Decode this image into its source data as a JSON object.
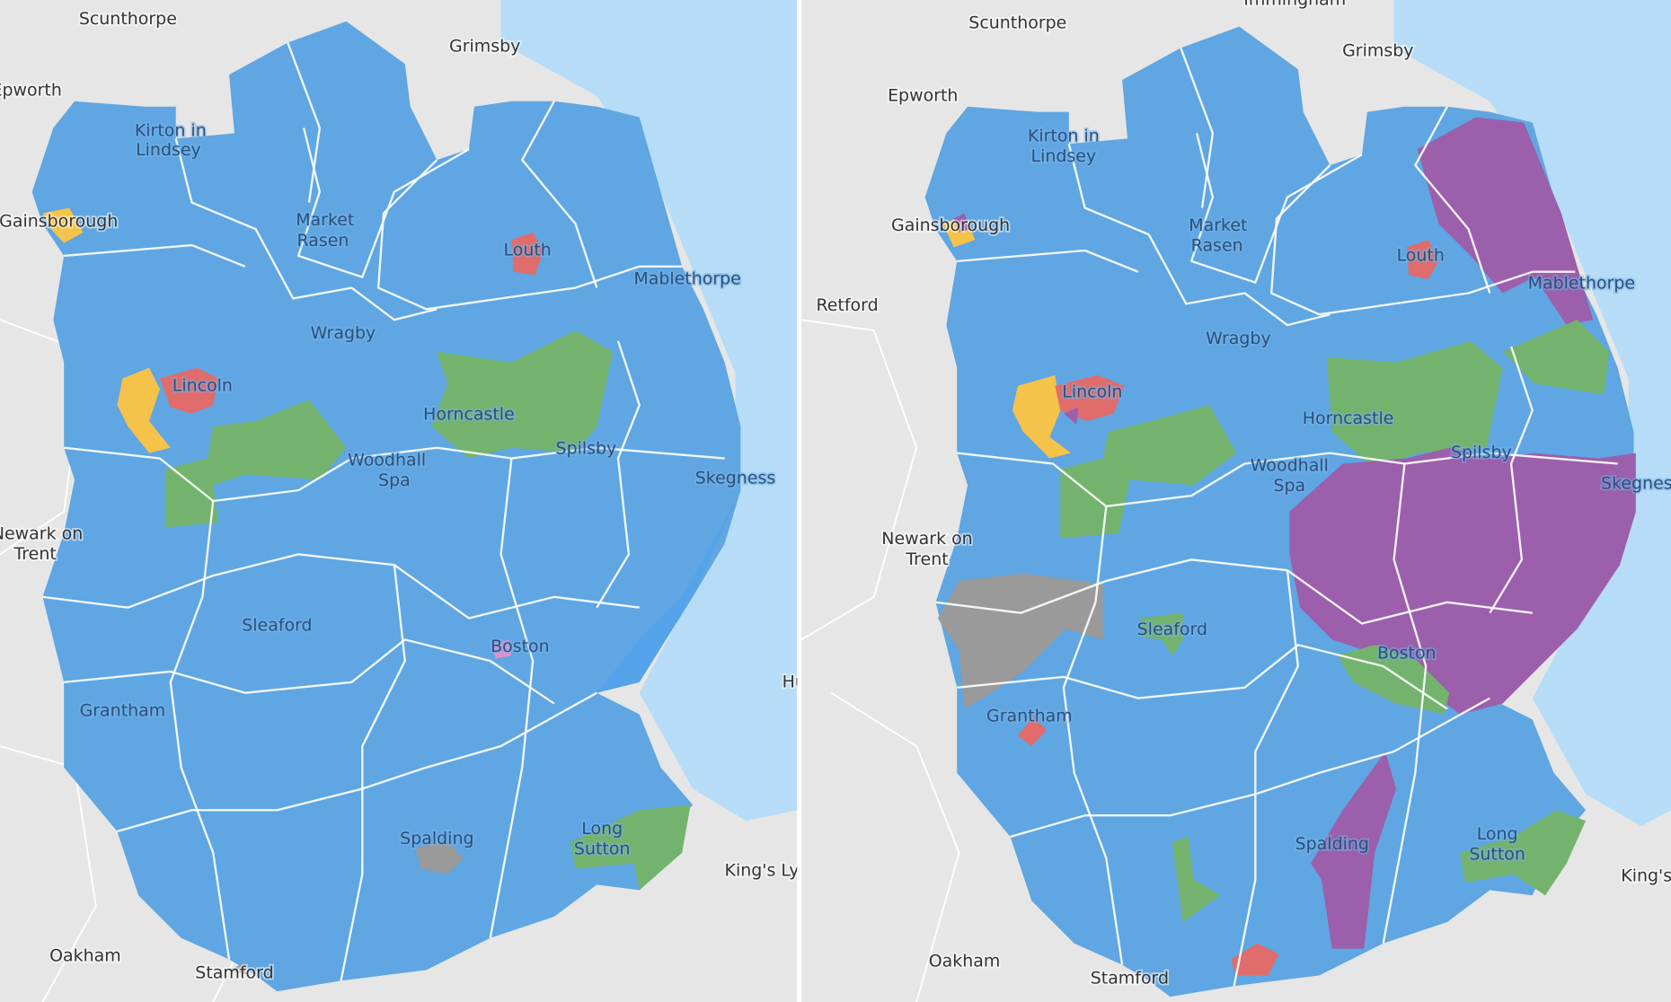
{
  "panels": [
    {
      "labels": [
        "Scunthorpe",
        "Grimsby",
        "Epworth",
        "Kirton in",
        "Lindsey",
        "Gainsborough",
        "Market",
        "Rasen",
        "Louth",
        "Mablethorpe",
        "Wragby",
        "Lincoln",
        "Horncastle",
        "Spilsby",
        "Woodhall",
        "Spa",
        "Skegness",
        "Newark on",
        "Trent",
        "Sleaford",
        "Boston",
        "Grantham",
        "Hu",
        "Spalding",
        "Long",
        "Sutton",
        "King's Lynn",
        "Oakham",
        "Stamford"
      ]
    },
    {
      "labels": [
        "Immingham",
        "Scunthorpe",
        "Grimsby",
        "Epworth",
        "Kirton in",
        "Lindsey",
        "Gainsborough",
        "Market",
        "Rasen",
        "Retford",
        "Louth",
        "Mablethorpe",
        "Wragby",
        "Lincoln",
        "Horncastle",
        "Spilsby",
        "Woodhall",
        "Spa",
        "Skegness",
        "Newark on",
        "Trent",
        "Sleaford",
        "Boston",
        "Grantham",
        "Spalding",
        "Long",
        "Sutton",
        "King's",
        "Oakham",
        "Stamford"
      ]
    }
  ]
}
